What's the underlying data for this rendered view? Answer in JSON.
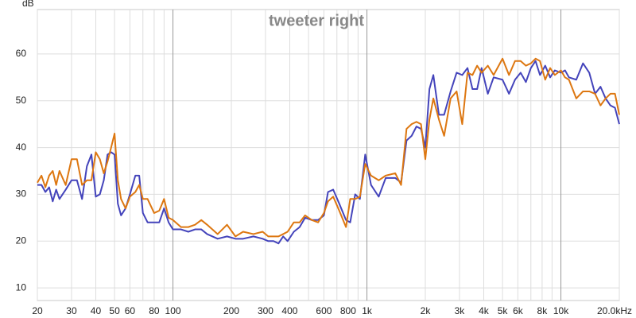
{
  "chart_data": {
    "type": "line",
    "title": "tweeter right",
    "y_label": "dB",
    "log_x": true,
    "grid": true,
    "xlim": [
      20,
      20000
    ],
    "ylim": [
      7.3,
      69.5
    ],
    "yticks": [
      10,
      20,
      30,
      40,
      50,
      60
    ],
    "xticks": [
      20,
      30,
      40,
      50,
      60,
      80,
      100,
      200,
      300,
      400,
      600,
      800,
      {
        "value": 1000,
        "label": "1k"
      },
      {
        "value": 2000,
        "label": "2k"
      },
      {
        "value": 3000,
        "label": "3k"
      },
      {
        "value": 4000,
        "label": "4k"
      },
      {
        "value": 5000,
        "label": "5k"
      },
      {
        "value": 6000,
        "label": "6k"
      },
      {
        "value": 8000,
        "label": "8k"
      },
      {
        "value": 10000,
        "label": "10k"
      },
      {
        "value": 20000,
        "label": "20.0kHz"
      }
    ],
    "x_grid": [
      70,
      90,
      500,
      700,
      900,
      7000,
      9000
    ],
    "x": [
      20,
      21,
      22,
      23,
      24,
      25,
      26,
      28,
      30,
      32,
      34,
      36,
      38,
      40,
      42,
      44,
      46,
      48,
      50,
      52,
      54,
      57,
      60,
      64,
      67,
      70,
      74,
      80,
      85,
      90,
      95,
      100,
      110,
      120,
      130,
      140,
      150,
      170,
      190,
      210,
      230,
      260,
      290,
      310,
      330,
      350,
      370,
      390,
      420,
      450,
      480,
      520,
      560,
      600,
      630,
      670,
      720,
      780,
      820,
      870,
      920,
      980,
      1050,
      1150,
      1250,
      1400,
      1500,
      1600,
      1700,
      1800,
      1900,
      2000,
      2100,
      2200,
      2350,
      2500,
      2700,
      2900,
      3100,
      3300,
      3500,
      3700,
      3900,
      4200,
      4500,
      5000,
      5400,
      5800,
      6200,
      6600,
      7000,
      7400,
      7800,
      8300,
      8800,
      9300,
      10000,
      10500,
      11000,
      12000,
      13000,
      14000,
      15000,
      16000,
      17000,
      18000,
      19000,
      20000
    ],
    "series": [
      {
        "color": "#4444bb",
        "values": [
          32,
          32,
          30.5,
          31.5,
          28.5,
          31,
          29,
          31,
          33,
          33,
          29,
          36,
          38.5,
          29.5,
          30,
          33,
          38.5,
          39,
          38.5,
          28,
          25.5,
          27,
          30,
          34,
          34,
          26,
          24,
          24,
          24,
          27,
          24,
          22.5,
          22.5,
          22,
          22.5,
          22.5,
          21.5,
          20.5,
          21,
          20.5,
          20.5,
          21,
          20.5,
          20,
          20,
          19.5,
          21,
          20,
          22,
          23,
          25,
          24.5,
          24.5,
          25.5,
          30.5,
          31,
          28,
          24.5,
          24,
          30,
          29,
          38.5,
          32,
          29.5,
          33.5,
          33.5,
          32.5,
          41.5,
          42.5,
          44.5,
          44,
          40,
          52.5,
          55.5,
          47,
          47,
          52,
          56,
          55.5,
          57,
          52.5,
          52.5,
          57,
          51.5,
          55,
          54.5,
          51.5,
          54.5,
          56,
          54,
          57,
          58.5,
          55.5,
          57.5,
          55,
          56.5,
          56,
          56.5,
          55,
          54.5,
          58,
          56,
          51.5,
          53,
          50.5,
          49,
          48.5,
          45
        ]
      },
      {
        "color": "#dd7711",
        "values": [
          32.5,
          34,
          31.5,
          34,
          35,
          32,
          35,
          32,
          37.5,
          37.5,
          32,
          33,
          33,
          39,
          37.5,
          34.5,
          37,
          40,
          43,
          33,
          29,
          27,
          29.5,
          30.5,
          32,
          29,
          29,
          26,
          26.5,
          29,
          25,
          24.5,
          23,
          23,
          23.5,
          24.5,
          23.5,
          21.5,
          23.5,
          21,
          22,
          21.5,
          22,
          21,
          21,
          21,
          21.5,
          22,
          24,
          24,
          25.5,
          24.5,
          24,
          26,
          28.5,
          29.5,
          26.5,
          23,
          29,
          29,
          29.5,
          36.5,
          34,
          33,
          34,
          34.5,
          32,
          44,
          45,
          45.5,
          45,
          37.5,
          46,
          50.5,
          46,
          42.5,
          50.5,
          52,
          45,
          56,
          55.5,
          57.5,
          56,
          57.5,
          55.5,
          59,
          55.5,
          58.5,
          58.5,
          57.5,
          58,
          59,
          58.5,
          54.5,
          57,
          55.5,
          56.5,
          55,
          54.5,
          50.5,
          52,
          52,
          51.5,
          49,
          50.5,
          51.5,
          51.5,
          47
        ]
      }
    ]
  }
}
